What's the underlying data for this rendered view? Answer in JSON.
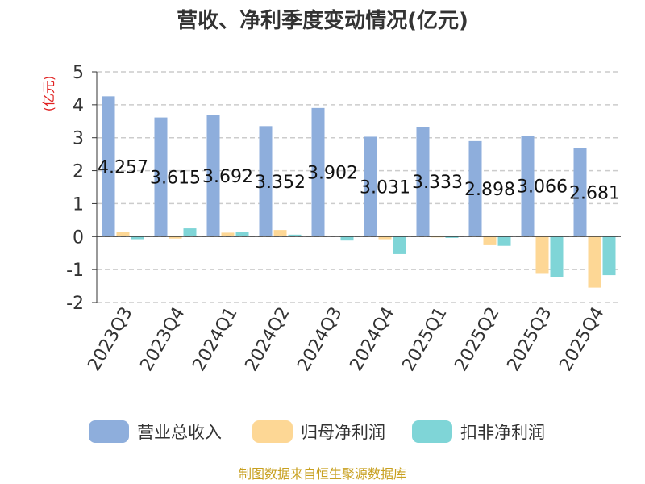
{
  "chart_data": {
    "type": "bar",
    "title": "营收、净利季度变动情况(亿元)",
    "ylabel": "(亿元)",
    "ylim": [
      -2,
      5
    ],
    "yticks": [
      "5",
      "4",
      "3",
      "2",
      "1",
      "0",
      "-1",
      "-2"
    ],
    "categories": [
      "2023Q3",
      "2023Q4",
      "2024Q1",
      "2024Q2",
      "2024Q3",
      "2024Q4",
      "2025Q1",
      "2025Q2",
      "2025Q3",
      "2025Q4"
    ],
    "series": [
      {
        "name": "营业总收入",
        "color": "#8eaedc",
        "values": [
          4.257,
          3.615,
          3.692,
          3.352,
          3.902,
          3.031,
          3.333,
          2.898,
          3.066,
          2.681
        ],
        "labels": [
          "4.257",
          "3.615",
          "3.692",
          "3.352",
          "3.902",
          "3.031",
          "3.333",
          "2.898",
          "3.066",
          "2.681"
        ]
      },
      {
        "name": "归母净利润",
        "color": "#fdd795",
        "values": [
          0.13,
          -0.06,
          0.12,
          0.2,
          0.03,
          -0.08,
          -0.02,
          -0.26,
          -1.13,
          -1.55
        ]
      },
      {
        "name": "扣非净利润",
        "color": "#7fd5d7",
        "values": [
          -0.08,
          0.25,
          0.13,
          0.06,
          -0.12,
          -0.53,
          -0.04,
          -0.28,
          -1.23,
          -1.17
        ]
      }
    ],
    "grid": "horizontal-dashed",
    "legend_position": "bottom"
  },
  "footer": {
    "source": "制图数据来自恒生聚源数据库"
  }
}
